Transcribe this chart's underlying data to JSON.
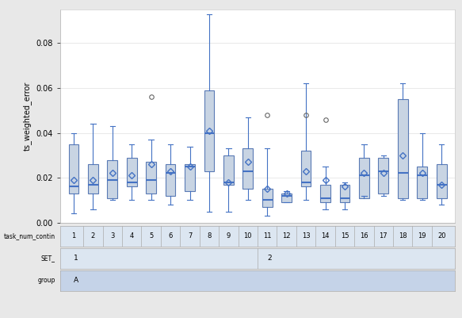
{
  "tasks": [
    1,
    2,
    3,
    4,
    5,
    6,
    7,
    8,
    9,
    10,
    11,
    12,
    13,
    14,
    15,
    16,
    17,
    18,
    19,
    20
  ],
  "box_data": {
    "1": {
      "q1": 0.013,
      "median": 0.016,
      "q3": 0.035,
      "whislo": 0.004,
      "whishi": 0.04,
      "mean": 0.019,
      "fliers": []
    },
    "2": {
      "q1": 0.013,
      "median": 0.017,
      "q3": 0.026,
      "whislo": 0.006,
      "whishi": 0.044,
      "mean": 0.019,
      "fliers": []
    },
    "3": {
      "q1": 0.011,
      "median": 0.019,
      "q3": 0.028,
      "whislo": 0.01,
      "whishi": 0.043,
      "mean": 0.022,
      "fliers": []
    },
    "4": {
      "q1": 0.016,
      "median": 0.018,
      "q3": 0.029,
      "whislo": 0.01,
      "whishi": 0.035,
      "mean": 0.021,
      "fliers": []
    },
    "5": {
      "q1": 0.013,
      "median": 0.019,
      "q3": 0.027,
      "whislo": 0.01,
      "whishi": 0.037,
      "mean": 0.026,
      "fliers": [
        0.056
      ]
    },
    "6": {
      "q1": 0.012,
      "median": 0.022,
      "q3": 0.026,
      "whislo": 0.008,
      "whishi": 0.035,
      "mean": 0.023,
      "fliers": []
    },
    "7": {
      "q1": 0.014,
      "median": 0.025,
      "q3": 0.026,
      "whislo": 0.01,
      "whishi": 0.034,
      "mean": 0.025,
      "fliers": []
    },
    "8": {
      "q1": 0.023,
      "median": 0.04,
      "q3": 0.059,
      "whislo": 0.005,
      "whishi": 0.093,
      "mean": 0.041,
      "fliers": []
    },
    "9": {
      "q1": 0.017,
      "median": 0.018,
      "q3": 0.03,
      "whislo": 0.005,
      "whishi": 0.033,
      "mean": 0.018,
      "fliers": []
    },
    "10": {
      "q1": 0.015,
      "median": 0.023,
      "q3": 0.033,
      "whislo": 0.01,
      "whishi": 0.047,
      "mean": 0.027,
      "fliers": []
    },
    "11": {
      "q1": 0.007,
      "median": 0.01,
      "q3": 0.015,
      "whislo": 0.003,
      "whishi": 0.033,
      "mean": 0.015,
      "fliers": [
        0.048
      ]
    },
    "12": {
      "q1": 0.009,
      "median": 0.012,
      "q3": 0.013,
      "whislo": 0.009,
      "whishi": 0.014,
      "mean": 0.013,
      "fliers": []
    },
    "13": {
      "q1": 0.016,
      "median": 0.018,
      "q3": 0.032,
      "whislo": 0.01,
      "whishi": 0.062,
      "mean": 0.023,
      "fliers": [
        0.048
      ]
    },
    "14": {
      "q1": 0.009,
      "median": 0.011,
      "q3": 0.017,
      "whislo": 0.006,
      "whishi": 0.025,
      "mean": 0.019,
      "fliers": [
        0.046
      ]
    },
    "15": {
      "q1": 0.009,
      "median": 0.011,
      "q3": 0.017,
      "whislo": 0.006,
      "whishi": 0.018,
      "mean": 0.016,
      "fliers": []
    },
    "16": {
      "q1": 0.011,
      "median": 0.021,
      "q3": 0.029,
      "whislo": 0.012,
      "whishi": 0.035,
      "mean": 0.022,
      "fliers": []
    },
    "17": {
      "q1": 0.013,
      "median": 0.023,
      "q3": 0.029,
      "whislo": 0.012,
      "whishi": 0.03,
      "mean": 0.022,
      "fliers": []
    },
    "18": {
      "q1": 0.011,
      "median": 0.022,
      "q3": 0.055,
      "whislo": 0.01,
      "whishi": 0.062,
      "mean": 0.03,
      "fliers": []
    },
    "19": {
      "q1": 0.011,
      "median": 0.021,
      "q3": 0.025,
      "whislo": 0.01,
      "whishi": 0.04,
      "mean": 0.022,
      "fliers": []
    },
    "20": {
      "q1": 0.011,
      "median": 0.017,
      "q3": 0.026,
      "whislo": 0.008,
      "whishi": 0.035,
      "mean": 0.017,
      "fliers": []
    }
  },
  "ylabel": "ts_weighted_error",
  "ylim": [
    0,
    0.095
  ],
  "yticks": [
    0.0,
    0.02,
    0.04,
    0.06,
    0.08
  ],
  "box_facecolor": "#c8d4e3",
  "box_edgecolor": "#5a7ab5",
  "median_color": "#4472c4",
  "whisker_color": "#4472c4",
  "mean_color": "#4472c4",
  "flier_edgecolor": "#666666",
  "table_bg_row1": "#dce6f1",
  "table_bg_row2": "#dce6f1",
  "table_bg_row3": "#c5d3e8",
  "table_border_color": "#aaaaaa",
  "fig_bg": "#e8e8e8",
  "plot_bg": "white",
  "set1_label": "1",
  "set2_label": "2",
  "group_label": "A",
  "row_labels": [
    "task_num_contin",
    "SET_",
    "group"
  ]
}
